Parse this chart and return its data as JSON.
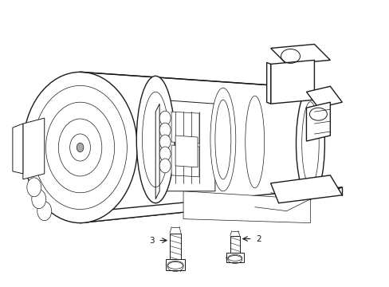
{
  "background_color": "#ffffff",
  "line_color": "#1a1a1a",
  "lw_main": 1.0,
  "lw_detail": 0.7,
  "lw_thin": 0.5,
  "label_fontsize": 7.5,
  "figsize": [
    4.89,
    3.6
  ],
  "dpi": 100
}
